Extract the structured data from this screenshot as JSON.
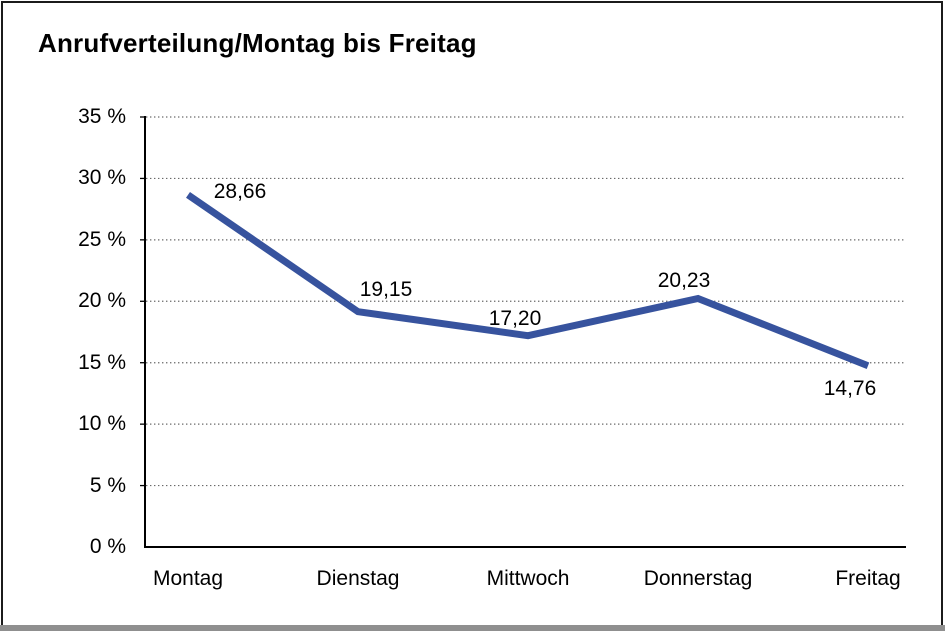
{
  "chart_data": {
    "type": "line",
    "title": "Anrufverteilung/Montag bis Freitag",
    "categories": [
      "Montag",
      "Dienstag",
      "Mittwoch",
      "Donnerstag",
      "Freitag"
    ],
    "series": [
      {
        "name": "Anrufverteilung",
        "values": [
          28.66,
          19.15,
          17.2,
          20.23,
          14.76
        ]
      }
    ],
    "point_labels": [
      "28,66",
      "19,15",
      "17,20",
      "20,23",
      "14,76"
    ],
    "xlabel": "",
    "ylabel": "",
    "ylim": [
      0,
      35
    ],
    "ytick_step": 5,
    "ytick_labels": [
      "0 %",
      "5 %",
      "10 %",
      "15 %",
      "20 %",
      "25 %",
      "30 %",
      "35 %"
    ],
    "grid": "horizontal-dotted",
    "legend": "none",
    "line_color": "#37539E",
    "axis_color": "#000000",
    "gridline_color": "#6a6a6a"
  }
}
